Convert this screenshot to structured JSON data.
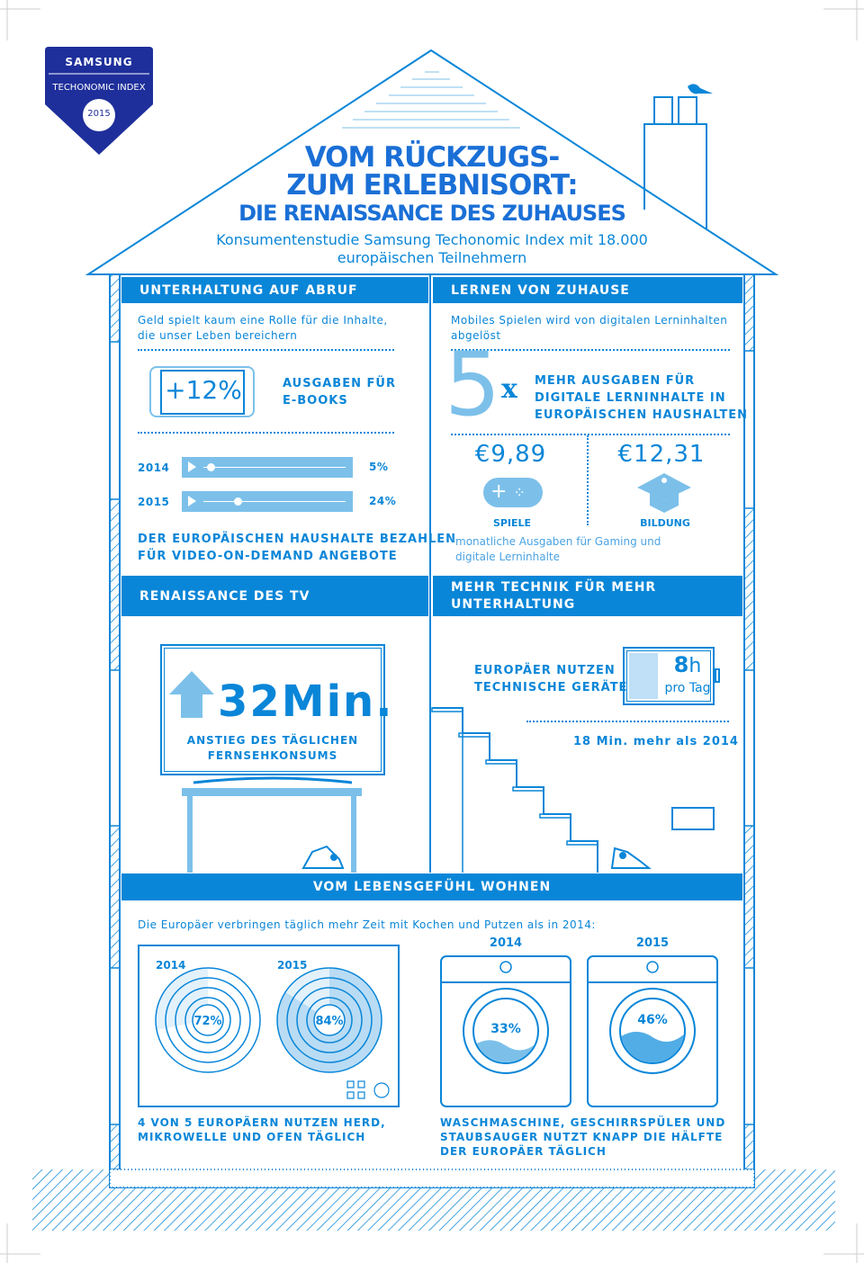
{
  "badge": {
    "brand": "SAMSUNG",
    "name": "TECHONOMIC INDEX",
    "year": "2015"
  },
  "title": {
    "line1": "VOM RÜCKZUGS-",
    "line2": "ZUM ERLEBNISORT:",
    "line3": "DIE RENAISSANCE DES ZUHAUSES",
    "sub1": "Konsumentenstudie Samsung Techonomic Index mit 18.000",
    "sub2": "europäischen Teilnehmern"
  },
  "colors": {
    "primary": "#0a86d8",
    "light": "#7cc0ea",
    "pale": "#cde6f7",
    "badge": "#1e2f9b"
  },
  "s1": {
    "header": "UNTERHALTUNG AUF ABRUF",
    "intro1": "Geld spielt kaum eine Rolle für die Inhalte,",
    "intro2": "die unser Leben bereichern",
    "tablet_value": "+12%",
    "ebooks1": "AUSGABEN FÜR",
    "ebooks2": "E-BOOKS",
    "rows": [
      {
        "year": "2014",
        "value": "5%",
        "progress": 5
      },
      {
        "year": "2015",
        "value": "24%",
        "progress": 24
      }
    ],
    "footer1": "DER EUROPÄISCHEN HAUSHALTE BEZAHLEN",
    "footer2": "FÜR VIDEO-ON-DEMAND ANGEBOTE"
  },
  "s2": {
    "header": "LERNEN VON ZUHAUSE",
    "intro1": "Mobiles Spielen wird von digitalen Lerninhalten",
    "intro2": "abgelöst",
    "big": "5",
    "x": "x",
    "text1": "MEHR AUSGABEN FÜR",
    "text2": "DIGITALE LERNINHALTE IN",
    "text3": "EUROPÄISCHEN HAUSHALTEN",
    "games_value": "€9,89",
    "games_label": "SPIELE",
    "edu_value": "€12,31",
    "edu_label": "BILDUNG",
    "note1": "*monatliche Ausgaben für Gaming und",
    "note2": "digitale Lerninhalte"
  },
  "s3": {
    "header": "RENAISSANCE DES TV",
    "value": "32Min.",
    "label1": "ANSTIEG DES TÄGLICHEN",
    "label2": "FERNSEHKONSUMS"
  },
  "s4": {
    "header1": "MEHR TECHNIK FÜR MEHR",
    "header2": "UNTERHALTUNG",
    "text1": "EUROPÄER NUTZEN",
    "text2": "TECHNISCHE GERÄTE",
    "hours": "8",
    "hours_unit": "h",
    "per_day": "pro Tag",
    "delta": "18 Min. mehr als 2014"
  },
  "s5": {
    "header": "VOM LEBENSGEFÜHL WOHNEN",
    "intro": "Die Europäer verbringen täglich mehr Zeit mit Kochen und Putzen als in 2014:",
    "stove": [
      {
        "year": "2014",
        "value": "72%",
        "pct": 72
      },
      {
        "year": "2015",
        "value": "84%",
        "pct": 84
      }
    ],
    "stove_caption1": "4 VON 5 EUROPÄERN NUTZEN HERD,",
    "stove_caption2": "MIKROWELLE UND OFEN TÄGLICH",
    "washers": [
      {
        "year": "2014",
        "value": "33%",
        "pct": 33
      },
      {
        "year": "2015",
        "value": "46%",
        "pct": 46
      }
    ],
    "washer_caption1": "WASCHMASCHINE, GESCHIRRSPÜLER UND",
    "washer_caption2": "STAUBSAUGER NUTZT KNAPP DIE HÄLFTE",
    "washer_caption3": "DER EUROPÄER TÄGLICH"
  }
}
